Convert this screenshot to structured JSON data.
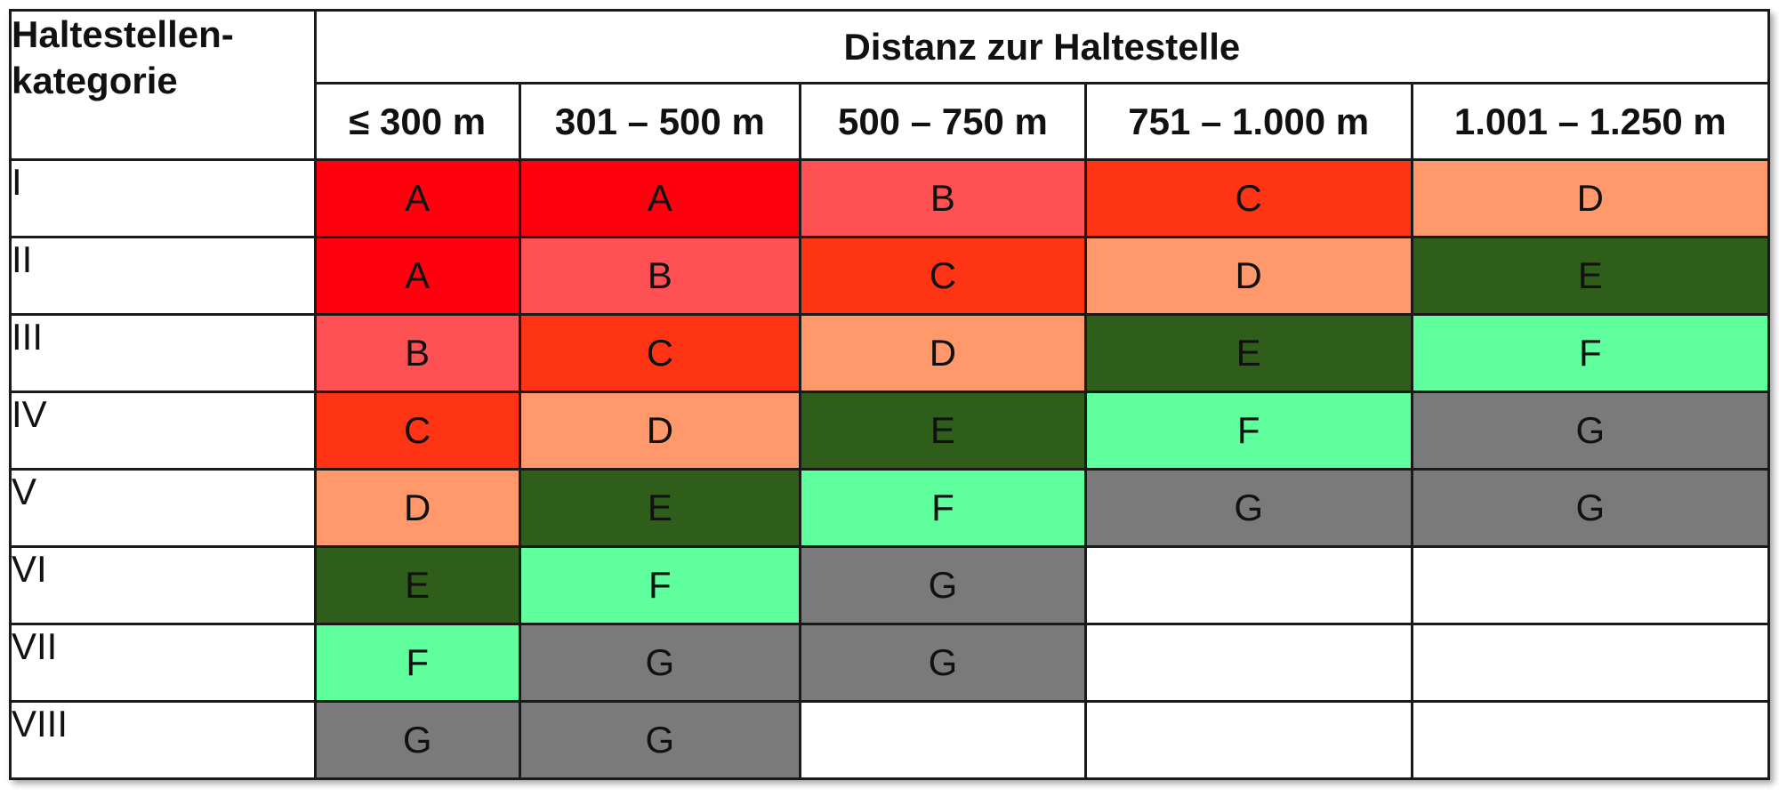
{
  "table": {
    "corner_header": "Haltestellen-\nkategorie",
    "group_header": "Distanz zur Haltestelle",
    "distance_columns": [
      "≤ 300 m",
      "301 – 500 m",
      "500 – 750 m",
      "751 – 1.000 m",
      "1.001 – 1.250 m"
    ],
    "colors": {
      "A": "#ff000f",
      "B": "#ff5054",
      "C": "#ff3414",
      "D": "#ff986a",
      "E": "#2f5e1a",
      "F": "#60ff9e",
      "G": "#7a7a7a",
      "empty": "#ffffff"
    },
    "rows": [
      {
        "category": "I",
        "cells": [
          "A",
          "A",
          "B",
          "C",
          "D"
        ]
      },
      {
        "category": "II",
        "cells": [
          "A",
          "B",
          "C",
          "D",
          "E"
        ]
      },
      {
        "category": "III",
        "cells": [
          "B",
          "C",
          "D",
          "E",
          "F"
        ]
      },
      {
        "category": "IV",
        "cells": [
          "C",
          "D",
          "E",
          "F",
          "G"
        ]
      },
      {
        "category": "V",
        "cells": [
          "D",
          "E",
          "F",
          "G",
          "G"
        ]
      },
      {
        "category": "VI",
        "cells": [
          "E",
          "F",
          "G",
          "",
          ""
        ]
      },
      {
        "category": "VII",
        "cells": [
          "F",
          "G",
          "G",
          "",
          ""
        ]
      },
      {
        "category": "VIII",
        "cells": [
          "G",
          "G",
          "",
          "",
          ""
        ]
      }
    ]
  }
}
